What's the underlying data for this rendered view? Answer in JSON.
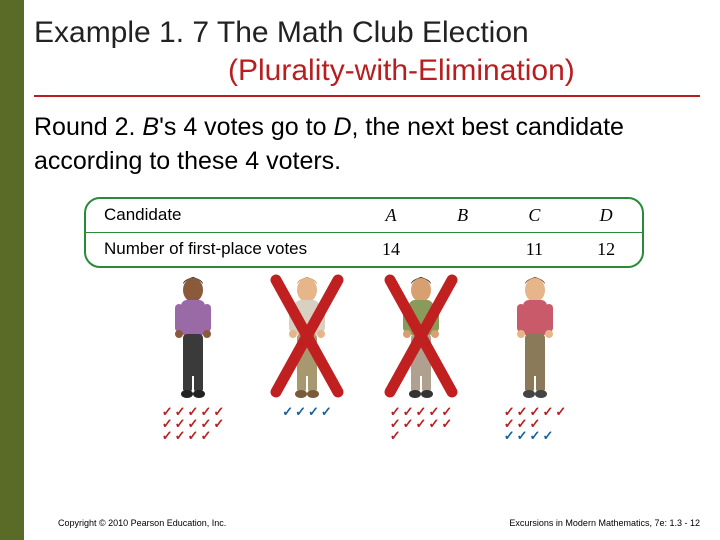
{
  "title": {
    "line1": "Example 1. 7  The Math Club Election",
    "line2": "(Plurality-with-Elimination)"
  },
  "body": {
    "prefix": "Round 2. ",
    "b": "B",
    "mid": "'s 4 votes go to ",
    "d": "D",
    "suffix": ", the next best candidate according to these 4 voters."
  },
  "table": {
    "row1_label": "Candidate",
    "row2_label": "Number of first-place votes",
    "cols": [
      "A",
      "B",
      "C",
      "D"
    ],
    "vals": [
      "14",
      "",
      "11",
      "12"
    ]
  },
  "candidates": [
    {
      "name": "A",
      "colors": {
        "skin": "#8a5a3a",
        "hair": "#2a1a0f",
        "shirt": "#9a6aa7",
        "pants": "#3a3a3a",
        "shoes": "#222"
      },
      "eliminated": false,
      "tallies": [
        {
          "color": "red",
          "rows": [
            5,
            5,
            4
          ]
        }
      ]
    },
    {
      "name": "B",
      "colors": {
        "skin": "#e6b68a",
        "hair": "#c89054",
        "shirt": "#d8d0c0",
        "pants": "#a89870",
        "shoes": "#7a5a3a"
      },
      "eliminated": true,
      "tallies": [
        {
          "color": "blue",
          "rows": [
            4
          ]
        }
      ]
    },
    {
      "name": "C",
      "colors": {
        "skin": "#d8a070",
        "hair": "#3a2a1a",
        "shirt": "#8a9a5a",
        "pants": "#b0a090",
        "shoes": "#333"
      },
      "eliminated": true,
      "tallies": [
        {
          "color": "red",
          "rows": [
            5,
            5,
            1
          ]
        }
      ]
    },
    {
      "name": "D",
      "colors": {
        "skin": "#e6b68a",
        "hair": "#7a4a2a",
        "shirt": "#c85a6a",
        "pants": "#8a7a5a",
        "shoes": "#444"
      },
      "eliminated": false,
      "tallies": [
        {
          "color": "red",
          "rows": [
            5,
            3
          ]
        },
        {
          "color": "blue",
          "rows": [
            4
          ]
        }
      ]
    }
  ],
  "xcolor": "#c02020",
  "footer": {
    "copyright": "Copyright © 2010 Pearson Education, Inc.",
    "right": "Excursions in Modern Mathematics, 7e: 1.3 - 12"
  }
}
